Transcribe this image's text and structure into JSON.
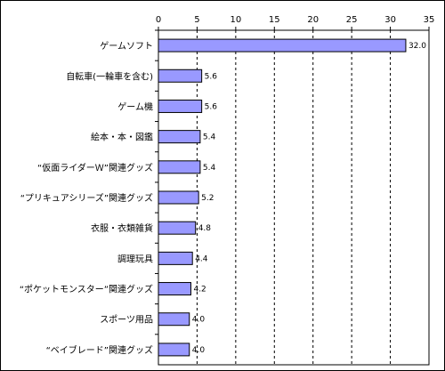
{
  "chart_data": {
    "type": "bar",
    "orientation": "horizontal",
    "categories": [
      "ゲームソフト",
      "自転車(一輪車を含む)",
      "ゲーム機",
      "絵本・本・図鑑",
      "“仮面ライダーＷ”関連グッズ",
      "“プリキュアシリーズ”関連グッズ",
      "衣服・衣類雑貨",
      "調理玩具",
      "“ポケットモンスター”関連グッズ",
      "スポーツ用品",
      "“ベイブレード”関連グッズ"
    ],
    "values": [
      32.0,
      5.6,
      5.6,
      5.4,
      5.4,
      5.2,
      4.8,
      4.4,
      4.2,
      4.0,
      4.0
    ],
    "value_labels": [
      "32.0",
      "5.6",
      "5.6",
      "5.4",
      "5.4",
      "5.2",
      "4.8",
      "4.4",
      "4.2",
      "4.0",
      "4.0"
    ],
    "xlim": [
      0,
      35
    ],
    "x_ticks": [
      0,
      5,
      10,
      15,
      20,
      25,
      30,
      35
    ],
    "axis_position": "top",
    "grid": true,
    "grid_style": "dashed",
    "bar_color": "#9999ff",
    "bar_edge_color": "#000000"
  }
}
